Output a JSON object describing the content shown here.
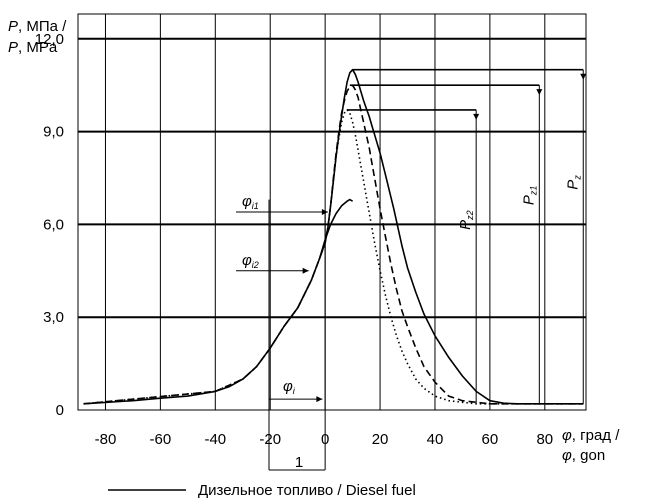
{
  "chart_data": {
    "type": "line",
    "ylabel_ru_prefix": "P",
    "ylabel_ru_suffix": ", МПа /",
    "ylabel_en_prefix": "P",
    "ylabel_en_suffix": ", MPa",
    "xlabel_ru_prefix": "φ",
    "xlabel_ru_suffix": ", град /",
    "xlabel_en_prefix": "φ",
    "xlabel_en_suffix": ", gon",
    "xlim": [
      -90,
      95
    ],
    "ylim": [
      0,
      12.8
    ],
    "x_ticks": [
      -80,
      -60,
      -40,
      -20,
      0,
      20,
      40,
      60,
      80
    ],
    "x_tick_labels": [
      "-80",
      "-60",
      "-40",
      "-20",
      "0",
      "20",
      "40",
      "60",
      "80"
    ],
    "y_ticks": [
      0,
      3,
      6,
      9,
      12
    ],
    "y_tick_labels": [
      "0",
      "3,0",
      "6,0",
      "9,0",
      "12,0"
    ],
    "grid": "both",
    "series": [
      {
        "name": "Дизельное топливо / Diesel fuel",
        "style": "solid",
        "color": "#000000",
        "x": [
          -88,
          -70,
          -60,
          -50,
          -40,
          -35,
          -30,
          -25,
          -20,
          -15,
          -10,
          -5,
          -2,
          0,
          1,
          2,
          3,
          4,
          5,
          6,
          7,
          8,
          9,
          10,
          11,
          12,
          13,
          14,
          15,
          16,
          17,
          18,
          20,
          22,
          25,
          28,
          30,
          33,
          36,
          40,
          45,
          50,
          55,
          60,
          65,
          70,
          80,
          94
        ],
        "y": [
          0.2,
          0.3,
          0.38,
          0.45,
          0.6,
          0.75,
          1.0,
          1.4,
          2.0,
          2.7,
          3.3,
          4.2,
          4.9,
          5.4,
          5.9,
          6.6,
          7.4,
          8.2,
          8.9,
          9.5,
          10.1,
          10.6,
          10.9,
          11.0,
          10.85,
          10.6,
          10.3,
          10.0,
          9.75,
          9.5,
          9.2,
          8.9,
          8.3,
          7.6,
          6.5,
          5.3,
          4.6,
          3.8,
          3.1,
          2.4,
          1.7,
          1.1,
          0.6,
          0.3,
          0.22,
          0.2,
          0.2,
          0.2
        ]
      },
      {
        "style": "dashed",
        "color": "#000000",
        "x": [
          -88,
          -40,
          -30,
          -25,
          -20,
          -15,
          -10,
          -5,
          -2,
          0,
          1,
          2,
          3,
          4,
          5,
          6,
          7,
          8,
          9,
          10,
          11,
          12,
          13,
          14,
          15,
          16,
          17,
          18,
          19,
          20,
          22,
          24,
          26,
          28,
          30,
          33,
          36,
          40,
          45,
          50,
          55,
          60,
          94
        ],
        "y": [
          0.2,
          0.6,
          1.0,
          1.4,
          2.0,
          2.7,
          3.3,
          4.2,
          4.9,
          5.4,
          5.9,
          6.6,
          7.5,
          8.3,
          9.0,
          9.6,
          10.0,
          10.3,
          10.45,
          10.5,
          10.35,
          10.1,
          9.7,
          9.3,
          8.9,
          8.5,
          8.0,
          7.5,
          7.0,
          6.5,
          5.6,
          4.7,
          3.9,
          3.2,
          2.7,
          2.0,
          1.4,
          0.9,
          0.45,
          0.3,
          0.25,
          0.2,
          0.2
        ]
      },
      {
        "style": "dotted",
        "color": "#000000",
        "x": [
          -88,
          -40,
          -30,
          -25,
          -20,
          -15,
          -10,
          -5,
          -2,
          0,
          1,
          2,
          3,
          4,
          5,
          6,
          7,
          8,
          9,
          10,
          11,
          12,
          13,
          14,
          15,
          16,
          18,
          20,
          22,
          24,
          26,
          28,
          30,
          33,
          36,
          40,
          45,
          50,
          55,
          60,
          94
        ],
        "y": [
          0.2,
          0.6,
          1.0,
          1.4,
          2.0,
          2.7,
          3.3,
          4.2,
          4.9,
          5.4,
          5.9,
          6.6,
          7.4,
          8.2,
          8.8,
          9.3,
          9.6,
          9.7,
          9.6,
          9.3,
          8.9,
          8.4,
          7.9,
          7.4,
          6.9,
          6.4,
          5.4,
          4.5,
          3.7,
          3.0,
          2.4,
          1.9,
          1.5,
          1.0,
          0.7,
          0.45,
          0.3,
          0.25,
          0.2,
          0.2,
          0.2
        ]
      },
      {
        "style": "solid",
        "color": "#000000",
        "x": [
          -2,
          0,
          2,
          4,
          6,
          8,
          9,
          10
        ],
        "y": [
          4.9,
          5.5,
          6.0,
          6.35,
          6.6,
          6.75,
          6.8,
          6.75
        ]
      }
    ],
    "annotations": {
      "phi_i1": {
        "sym": "φ",
        "sub": "i1",
        "y": 6.4
      },
      "phi_i2": {
        "sym": "φ",
        "sub": "i2",
        "y": 4.5
      },
      "phi_i": {
        "sym": "φ",
        "sub": "i",
        "y": 0.35
      },
      "pz2": {
        "sym": "P",
        "sub": "z2",
        "x": 55,
        "y": 9.7
      },
      "pz1": {
        "sym": "P",
        "sub": "z1",
        "x": 78,
        "y": 10.5
      },
      "pz": {
        "sym": "P",
        "sub": "z",
        "x": 94,
        "y": 11.0
      },
      "scale_bar_label": "1"
    }
  }
}
